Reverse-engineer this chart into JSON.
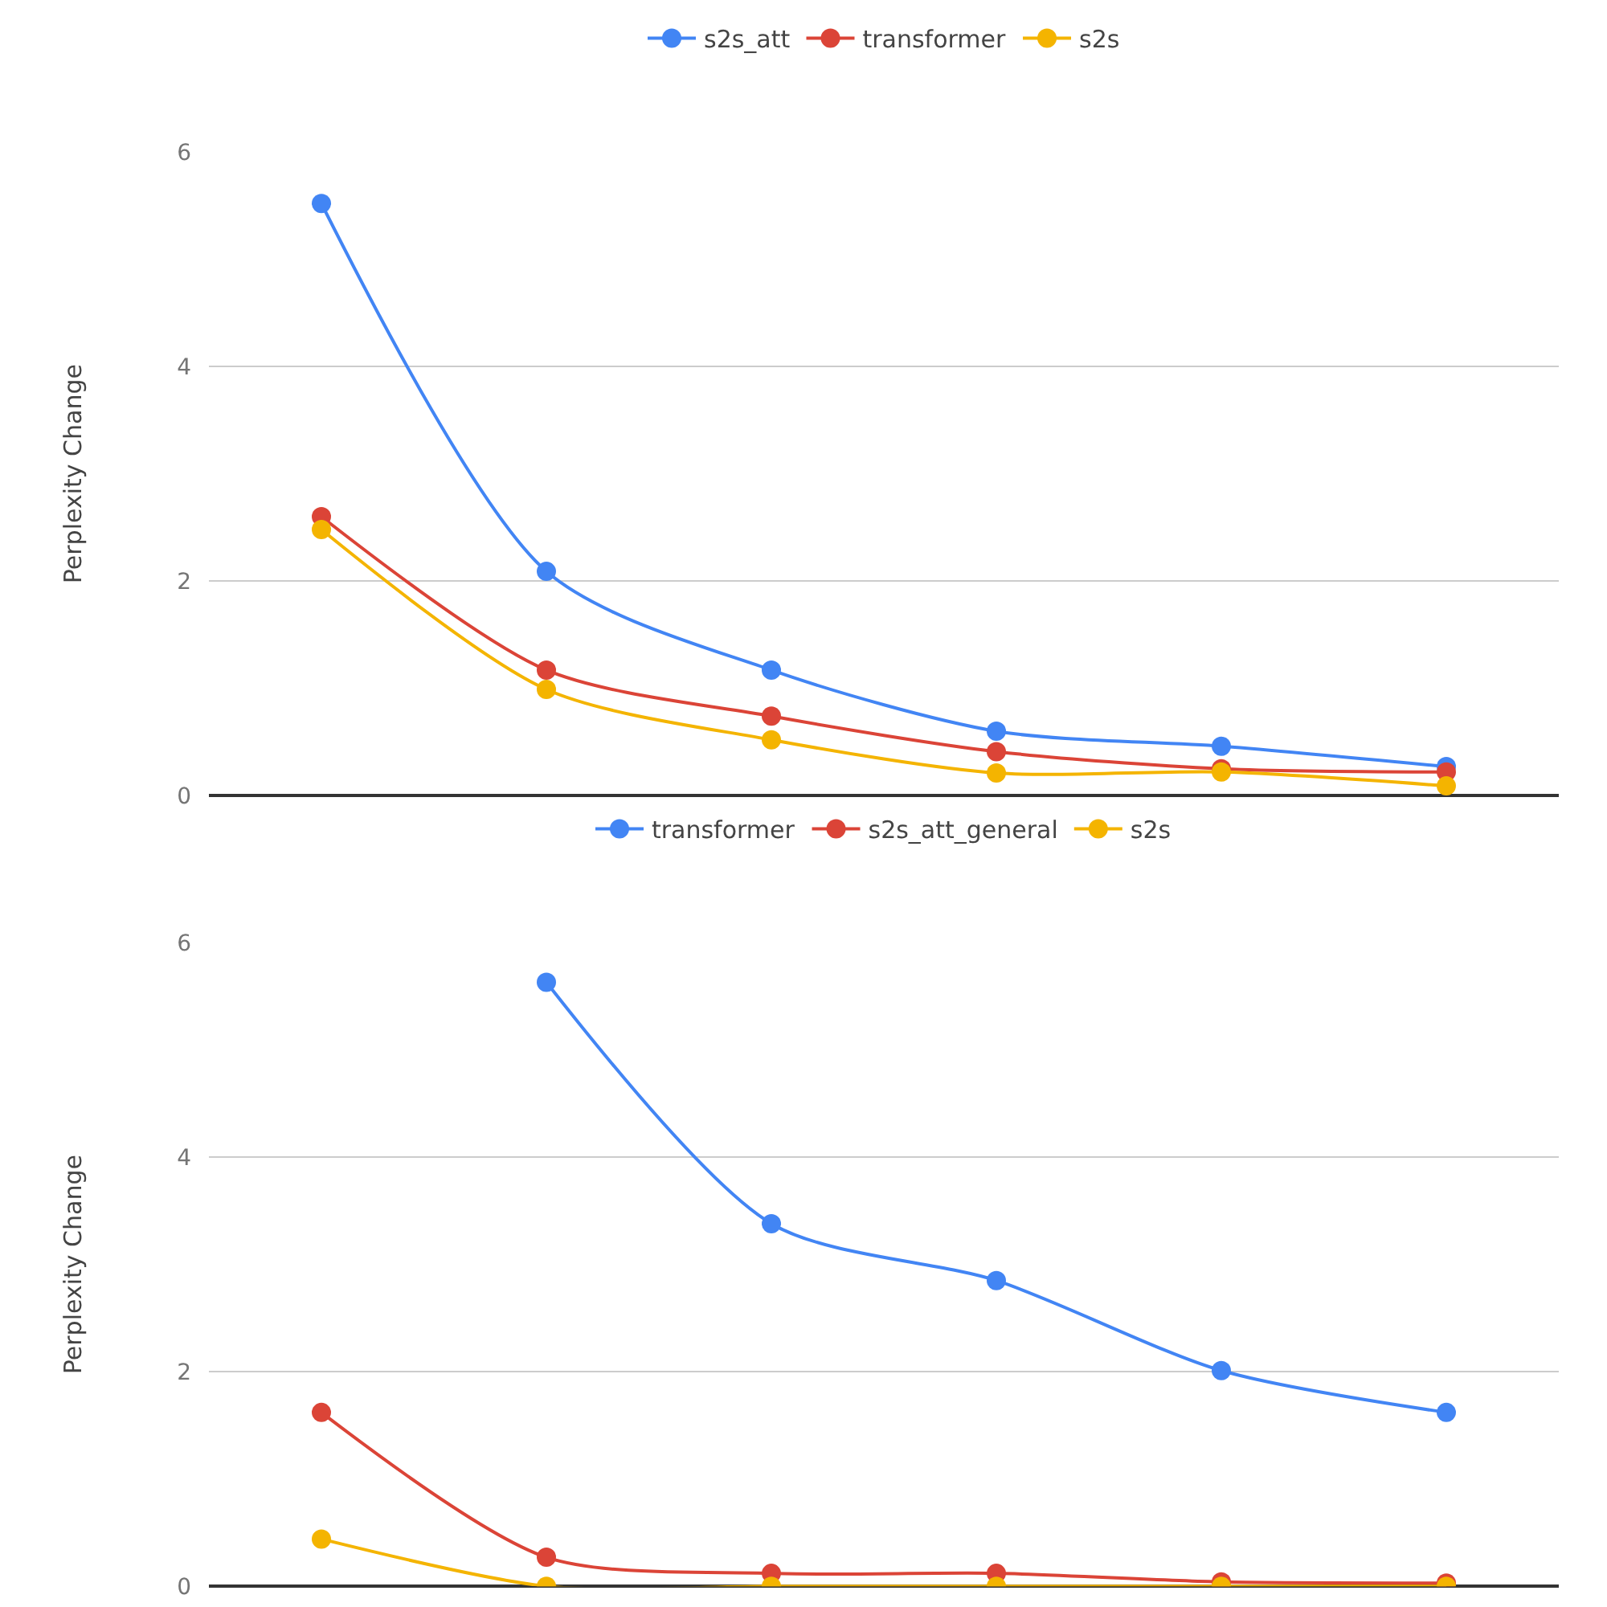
{
  "chart_data": [
    {
      "type": "line",
      "ylabel": "Perplexity Change",
      "categories": [
        null,
        null,
        null,
        null,
        null,
        null
      ],
      "ylim": [
        0,
        6
      ],
      "yticks": [
        0,
        2,
        4,
        6
      ],
      "grid": "y",
      "legend": "top",
      "marker": "circle",
      "line_style": "solid",
      "tick_labels": "y",
      "series": [
        {
          "name": "s2s_att",
          "color": "#4285f4",
          "values": [
            5.52,
            2.09,
            1.17,
            0.6,
            0.46,
            0.27
          ]
        },
        {
          "name": "transformer",
          "color": "#db4437",
          "values": [
            2.6,
            1.17,
            0.74,
            0.41,
            0.25,
            0.22
          ]
        },
        {
          "name": "s2s",
          "color": "#f4b400",
          "values": [
            2.48,
            0.99,
            0.52,
            0.21,
            0.22,
            0.09
          ]
        }
      ]
    },
    {
      "type": "line",
      "ylabel": "Perplexity Change",
      "categories": [
        null,
        null,
        null,
        null,
        null,
        null
      ],
      "ylim": [
        0,
        6
      ],
      "yticks": [
        0,
        2,
        4,
        6
      ],
      "grid": "y",
      "legend": "top",
      "marker": "circle",
      "line_style": "solid",
      "tick_labels": "y",
      "series": [
        {
          "name": "transformer",
          "color": "#4285f4",
          "values": [
            null,
            5.63,
            3.38,
            2.85,
            2.01,
            1.62
          ]
        },
        {
          "name": "s2s_att_general",
          "color": "#db4437",
          "values": [
            1.62,
            0.27,
            0.12,
            0.12,
            0.04,
            0.03
          ]
        },
        {
          "name": "s2s",
          "color": "#f4b400",
          "values": [
            0.44,
            0.0,
            0.0,
            0.0,
            0.0,
            0.0
          ]
        }
      ]
    }
  ]
}
